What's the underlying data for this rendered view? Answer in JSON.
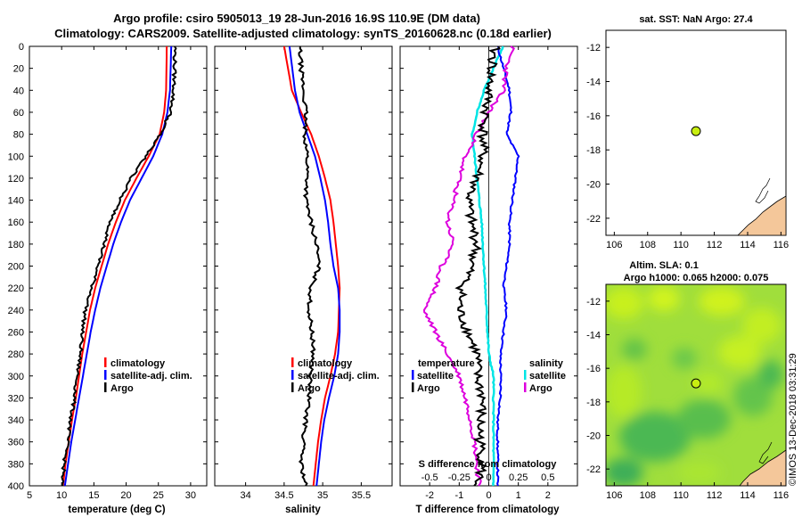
{
  "title_line1": "Argo profile: csiro 5905013_19 28-Jun-2016 16.9S 110.9E (DM data)",
  "title_line2": "Climatology: CARS2009. Satellite-adjusted climatology: synTS_20160628.nc (0.18d earlier)",
  "colors": {
    "climatology": "#ff0000",
    "satellite": "#0000ff",
    "argo": "#000000",
    "salinity_satellite": "#00e5e5",
    "salinity_argo": "#dd00dd",
    "land": "#f4c79a",
    "marker": "#c8ee10"
  },
  "chart_data": [
    {
      "type": "line",
      "name": "temperature",
      "xlabel": "temperature (deg C)",
      "ylabel": "",
      "xlim": [
        5,
        32.5
      ],
      "ylim": [
        0,
        400
      ],
      "xticks": [
        "5",
        "10",
        "15",
        "20",
        "25",
        "30"
      ],
      "yticks": [
        "0",
        "20",
        "40",
        "60",
        "80",
        "100",
        "120",
        "140",
        "160",
        "180",
        "200",
        "220",
        "240",
        "260",
        "280",
        "300",
        "320",
        "340",
        "360",
        "380",
        "400"
      ],
      "legend": [
        "climatology",
        "satellite-adj. clim.",
        "Argo"
      ],
      "series": [
        {
          "name": "climatology",
          "depth": [
            0,
            40,
            60,
            80,
            100,
            120,
            140,
            160,
            180,
            200,
            220,
            240,
            260,
            280,
            300,
            320,
            340,
            360,
            380,
            400
          ],
          "values": [
            26.3,
            26.2,
            25.9,
            25.2,
            23.5,
            21.6,
            19.8,
            18.4,
            17.2,
            16.2,
            15.2,
            14.4,
            13.8,
            13.2,
            12.7,
            12.2,
            11.6,
            11.1,
            10.6,
            10.2
          ]
        },
        {
          "name": "satellite-adj. clim.",
          "depth": [
            0,
            40,
            60,
            80,
            100,
            120,
            140,
            160,
            180,
            200,
            220,
            240,
            260,
            280,
            300,
            320,
            340,
            360,
            380,
            400
          ],
          "values": [
            27.0,
            26.8,
            26.4,
            25.6,
            24.2,
            22.4,
            20.6,
            19.2,
            18.0,
            17.0,
            16.0,
            15.2,
            14.5,
            13.9,
            13.3,
            12.7,
            12.1,
            11.5,
            11.0,
            10.5
          ]
        },
        {
          "name": "Argo",
          "depth": [
            0,
            40,
            60,
            80,
            100,
            120,
            140,
            160,
            180,
            200,
            220,
            240,
            260,
            280,
            300,
            320,
            340,
            360,
            380,
            400
          ],
          "values": [
            27.6,
            27.4,
            26.9,
            25.3,
            23.0,
            20.8,
            19.0,
            17.6,
            16.6,
            15.6,
            14.7,
            13.7,
            13.2,
            12.9,
            12.4,
            12.0,
            11.4,
            10.9,
            10.4,
            10.0
          ]
        }
      ]
    },
    {
      "type": "line",
      "name": "salinity",
      "xlabel": "salinity",
      "xlim": [
        33.6,
        35.9
      ],
      "ylim": [
        0,
        400
      ],
      "xticks": [
        "34",
        "34.5",
        "35",
        "35.5"
      ],
      "legend": [
        "climatology",
        "satellite-adj. clim.",
        "Argo"
      ],
      "series": [
        {
          "name": "climatology",
          "depth": [
            0,
            40,
            60,
            80,
            100,
            120,
            140,
            160,
            180,
            200,
            220,
            240,
            260,
            280,
            300,
            320,
            340,
            360,
            380,
            400
          ],
          "values": [
            34.5,
            34.6,
            34.72,
            34.85,
            34.95,
            35.03,
            35.1,
            35.14,
            35.17,
            35.2,
            35.22,
            35.21,
            35.2,
            35.16,
            35.1,
            35.03,
            34.98,
            34.94,
            34.91,
            34.88
          ]
        },
        {
          "name": "satellite-adj. clim.",
          "depth": [
            0,
            40,
            60,
            80,
            100,
            120,
            140,
            160,
            180,
            200,
            220,
            240,
            260,
            280,
            300,
            320,
            340,
            360,
            380,
            400
          ],
          "values": [
            34.57,
            34.64,
            34.7,
            34.8,
            34.9,
            34.97,
            35.03,
            35.07,
            35.1,
            35.14,
            35.2,
            35.22,
            35.22,
            35.2,
            35.15,
            35.08,
            35.02,
            34.98,
            34.95,
            34.92
          ]
        },
        {
          "name": "Argo",
          "depth": [
            0,
            20,
            40,
            60,
            80,
            100,
            120,
            140,
            160,
            180,
            200,
            220,
            240,
            260,
            280,
            300,
            320,
            340,
            360,
            380,
            400
          ],
          "values": [
            34.7,
            34.72,
            34.75,
            34.78,
            34.77,
            34.8,
            34.8,
            34.78,
            34.85,
            34.92,
            34.95,
            34.85,
            34.82,
            34.86,
            34.88,
            34.84,
            34.82,
            34.78,
            34.75,
            34.72,
            34.78
          ]
        }
      ]
    },
    {
      "type": "line",
      "name": "differences",
      "xlabel": "T difference from climatology",
      "xlabel_top": "S difference from climatology",
      "xlim": [
        -3,
        3
      ],
      "ylim": [
        0,
        400
      ],
      "xticks": [
        "-2",
        "-1",
        "0",
        "1",
        "2"
      ],
      "xticks_top": [
        "-0.5",
        "-0.25",
        "0",
        "0.25",
        "0.5"
      ],
      "legend_temperature_title": "temperature",
      "legend_salinity_title": "salinity",
      "legend": [
        "satellite",
        "Argo",
        "satellite",
        "Argo"
      ],
      "series": [
        {
          "name": "temperature satellite",
          "depth": [
            0,
            40,
            60,
            80,
            100,
            120,
            140,
            160,
            180,
            200,
            220,
            240,
            260,
            280,
            300,
            320,
            340,
            360,
            380,
            400
          ],
          "values": [
            0.3,
            0.7,
            0.75,
            0.6,
            1.0,
            0.9,
            0.8,
            0.7,
            0.7,
            0.6,
            0.5,
            0.6,
            0.5,
            0.4,
            0.4,
            0.4,
            0.3,
            0.3,
            0.3,
            0.3
          ]
        },
        {
          "name": "temperature Argo",
          "depth": [
            0,
            20,
            40,
            60,
            80,
            100,
            120,
            140,
            160,
            180,
            200,
            220,
            240,
            260,
            280,
            300,
            320,
            340,
            360,
            380,
            400
          ],
          "values": [
            0.2,
            0.1,
            0.0,
            -0.1,
            -0.2,
            -0.2,
            -0.4,
            -0.7,
            -0.6,
            -0.4,
            -0.6,
            -0.9,
            -1.0,
            -0.7,
            -0.4,
            -0.4,
            -0.2,
            -0.3,
            -0.3,
            -0.2,
            -0.4
          ]
        },
        {
          "name": "salinity satellite",
          "depth": [
            0,
            40,
            60,
            80,
            100,
            120,
            140,
            160,
            180,
            200,
            220,
            240,
            260,
            280,
            300,
            320,
            340,
            360,
            380,
            400
          ],
          "values": [
            0.12,
            -0.04,
            -0.1,
            -0.14,
            -0.12,
            -0.1,
            -0.08,
            -0.06,
            -0.05,
            -0.04,
            -0.03,
            -0.02,
            -0.01,
            0.0,
            0.04,
            0.04,
            0.04,
            0.04,
            0.04,
            0.04
          ]
        },
        {
          "name": "salinity Argo",
          "depth": [
            0,
            20,
            40,
            60,
            80,
            100,
            120,
            140,
            160,
            180,
            200,
            220,
            240,
            260,
            280,
            300,
            320,
            340,
            360,
            380,
            400
          ],
          "values": [
            0.2,
            0.15,
            0.12,
            0.0,
            -0.1,
            -0.2,
            -0.25,
            -0.3,
            -0.35,
            -0.3,
            -0.4,
            -0.45,
            -0.55,
            -0.45,
            -0.35,
            -0.25,
            -0.2,
            -0.15,
            -0.12,
            -0.1,
            -0.08
          ]
        }
      ]
    },
    {
      "type": "scatter",
      "name": "sst_map",
      "title": "sat. SST: NaN Argo: 27.4",
      "xlim": [
        105.5,
        116.3
      ],
      "ylim": [
        -23,
        -11
      ],
      "xticks": [
        "106",
        "108",
        "110",
        "112",
        "114",
        "116"
      ],
      "yticks": [
        "-12",
        "-14",
        "-16",
        "-18",
        "-20",
        "-22"
      ],
      "points": [
        {
          "lon": 110.9,
          "lat": -16.9
        }
      ]
    },
    {
      "type": "heatmap",
      "name": "sla_map",
      "title_line1": "Altim. SLA: 0.1",
      "title_line2": "Argo h1000: 0.065 h2000: 0.075",
      "xlim": [
        105.5,
        116.3
      ],
      "ylim": [
        -23,
        -11
      ],
      "xticks": [
        "106",
        "108",
        "110",
        "112",
        "114",
        "116"
      ],
      "yticks": [
        "-12",
        "-14",
        "-16",
        "-18",
        "-20",
        "-22"
      ],
      "points": [
        {
          "lon": 110.9,
          "lat": -16.9
        }
      ]
    }
  ],
  "watermark": "©IMOS 13-Dec-2018 03:31:29"
}
